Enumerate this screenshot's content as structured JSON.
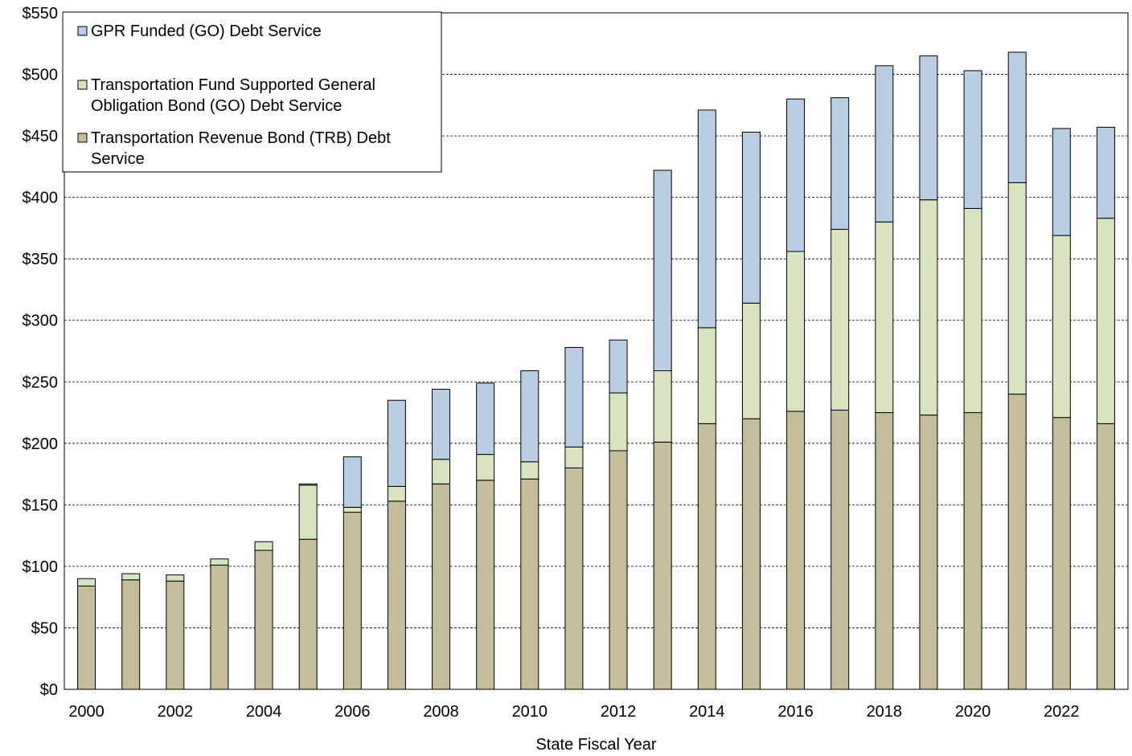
{
  "chart_data": {
    "type": "bar",
    "stacked": true,
    "title": "",
    "xlabel": "State Fiscal Year",
    "ylabel": "",
    "ylim": [
      0,
      550
    ],
    "ytick_step": 50,
    "ytick_labels": [
      "$0",
      "$50",
      "$100",
      "$150",
      "$200",
      "$250",
      "$300",
      "$350",
      "$400",
      "$450",
      "$500",
      "$550"
    ],
    "grid": true,
    "legend_position": "top-left",
    "categories": [
      2000,
      2001,
      2002,
      2003,
      2004,
      2005,
      2006,
      2007,
      2008,
      2009,
      2010,
      2011,
      2012,
      2013,
      2014,
      2015,
      2016,
      2017,
      2018,
      2019,
      2020,
      2021,
      2022,
      2023
    ],
    "xtick_labels": [
      "2000",
      "",
      "2002",
      "",
      "2004",
      "",
      "2006",
      "",
      "2008",
      "",
      "2010",
      "",
      "2012",
      "",
      "2014",
      "",
      "2016",
      "",
      "2018",
      "",
      "2020",
      "",
      "2022",
      ""
    ],
    "series": [
      {
        "name": "Transportation Revenue Bond (TRB) Debt Service",
        "color": "#c4bd97",
        "values": [
          84,
          89,
          88,
          101,
          113,
          122,
          144,
          153,
          167,
          170,
          171,
          180,
          194,
          201,
          216,
          220,
          226,
          227,
          225,
          223,
          225,
          240,
          221,
          216
        ]
      },
      {
        "name": "Transportation Fund Supported General Obligation Bond (GO) Debt Service",
        "color": "#d7e4bd",
        "values": [
          6,
          5,
          5,
          5,
          7,
          44,
          4,
          12,
          20,
          21,
          14,
          17,
          47,
          58,
          78,
          94,
          130,
          147,
          155,
          175,
          166,
          172,
          148,
          167
        ]
      },
      {
        "name": "GPR Funded (GO) Debt Service",
        "color": "#b9cde5",
        "values": [
          0,
          0,
          0,
          0,
          0,
          1,
          41,
          70,
          57,
          58,
          74,
          81,
          43,
          163,
          177,
          139,
          124,
          107,
          127,
          117,
          112,
          106,
          87,
          74
        ]
      }
    ],
    "legend": {
      "entries": [
        {
          "lines": [
            "GPR Funded (GO) Debt Service"
          ],
          "color": "#b9cde5"
        },
        {
          "lines": [
            "Transportation Fund Supported General",
            "Obligation Bond (GO) Debt Service"
          ],
          "color": "#d7e4bd"
        },
        {
          "lines": [
            "Transportation Revenue Bond (TRB) Debt",
            "Service"
          ],
          "color": "#c4bd97"
        }
      ]
    }
  }
}
